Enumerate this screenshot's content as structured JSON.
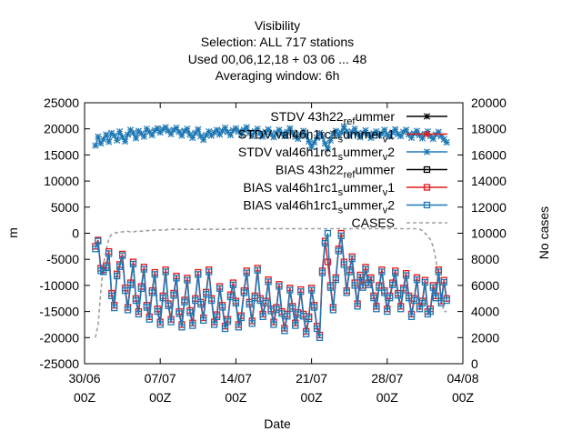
{
  "title_lines": [
    "Visibility",
    "Selection: ALL     717 stations",
    "Used  00,06,12,18  + 03 06 ... 48",
    "Averaging window:  6h"
  ],
  "chart_data": {
    "type": "line",
    "title": "Visibility",
    "xlabel": "Date",
    "ylabel": "m",
    "y2label": "No cases",
    "x_ticks": [
      {
        "x": "30/06 00Z",
        "line1": "30/06",
        "line2": "00Z"
      },
      {
        "x": "07/07 00Z",
        "line1": "07/07",
        "line2": "00Z"
      },
      {
        "x": "14/07 00Z",
        "line1": "14/07",
        "line2": "00Z"
      },
      {
        "x": "21/07 00Z",
        "line1": "21/07",
        "line2": "00Z"
      },
      {
        "x": "28/07 00Z",
        "line1": "28/07",
        "line2": "00Z"
      },
      {
        "x": "04/08 00Z",
        "line1": "04/08",
        "line2": "00Z"
      }
    ],
    "xlim": [
      "30/06 00Z",
      "04/08 00Z"
    ],
    "ylim": [
      -25000,
      25000
    ],
    "y_ticks": [
      -25000,
      -20000,
      -15000,
      -10000,
      -5000,
      0,
      5000,
      10000,
      15000,
      20000,
      25000
    ],
    "y2lim": [
      0,
      20000
    ],
    "y2_ticks": [
      0,
      2000,
      4000,
      6000,
      8000,
      10000,
      12000,
      14000,
      16000,
      18000,
      20000
    ],
    "legend_position": "top-right",
    "legend": [
      {
        "id": "stdv_ref",
        "text": "STDV 43h22",
        "sub": "ref",
        "rest": "ummer",
        "sub2": "",
        "color": "#000000",
        "marker": "star"
      },
      {
        "id": "stdv_v1",
        "text": "STDV val46h1rc1",
        "sub": "s",
        "rest": "ummer",
        "sub2": "v",
        "tail": "1",
        "color": "#e41a1c",
        "marker": "star"
      },
      {
        "id": "stdv_v2",
        "text": "STDV val46h1rc1",
        "sub": "s",
        "rest": "ummer",
        "sub2": "v",
        "tail": "2",
        "color": "#1f78b4",
        "marker": "star"
      },
      {
        "id": "bias_ref",
        "text": "BIAS 43h22",
        "sub": "ref",
        "rest": "ummer",
        "sub2": "",
        "color": "#000000",
        "marker": "square"
      },
      {
        "id": "bias_v1",
        "text": "BIAS val46h1rc1",
        "sub": "s",
        "rest": "ummer",
        "sub2": "v",
        "tail": "1",
        "color": "#e41a1c",
        "marker": "square"
      },
      {
        "id": "bias_v2",
        "text": "BIAS val46h1rc1",
        "sub": "s",
        "rest": "ummer",
        "sub2": "v",
        "tail": "2",
        "color": "#1f78b4",
        "marker": "square"
      },
      {
        "id": "cases",
        "text": "CASES",
        "color": "#a0a0a0",
        "marker": "dash"
      }
    ],
    "x_start": "01/07 00Z",
    "x_step": "6h",
    "series": [
      {
        "name": "STDV val46h1rc1_summer_v2",
        "axis": "y",
        "color": "#1f78b4",
        "marker": "star",
        "values": [
          16800,
          18500,
          17200,
          18000,
          18900,
          17500,
          19200,
          18700,
          17800,
          19500,
          18400,
          17600,
          18900,
          19800,
          19200,
          18200,
          19600,
          19100,
          18500,
          20000,
          19400,
          18800,
          19700,
          20100,
          19300,
          19900,
          20300,
          19600,
          19000,
          19800,
          20200,
          19400,
          18700,
          19600,
          20000,
          18900,
          18300,
          19200,
          19900,
          18600,
          17900,
          18800,
          19500,
          18700,
          19300,
          19800,
          18900,
          19600,
          20200,
          19400,
          18800,
          19700,
          20100,
          19500,
          18900,
          19800,
          20300,
          19200,
          18600,
          19500,
          20000,
          19100,
          18500,
          19400,
          19900,
          19000,
          18400,
          19200,
          19800,
          19100,
          18600,
          19400,
          20100,
          19300,
          18500,
          18100,
          18900,
          19600,
          18700,
          17600,
          16500,
          17400,
          18300,
          19200,
          18500,
          17200,
          16100,
          17800,
          19100,
          19600,
          18700,
          19300,
          20400,
          19500,
          18600,
          19400,
          20000,
          19100,
          18400,
          19200,
          19700,
          18900,
          18300,
          19100,
          19500,
          18700,
          19100,
          19800,
          18900,
          18500,
          19300,
          19900,
          19000,
          18600,
          19400,
          19800,
          18900,
          18300,
          19100,
          19600,
          18800,
          18200,
          19000,
          19500,
          18600,
          18100,
          18900,
          19400,
          18600,
          18000,
          17400
        ]
      },
      {
        "name": "BIAS val46h1rc1_summer_v1",
        "axis": "y",
        "color": "#e41a1c",
        "marker": "square",
        "values": [
          -2500,
          -1300,
          -6700,
          -7000,
          -6200,
          -3500,
          -11500,
          -13800,
          -7800,
          -6000,
          -4000,
          -10500,
          -14200,
          -9500,
          -5500,
          -12500,
          -15000,
          -10200,
          -6500,
          -13800,
          -16000,
          -11000,
          -7500,
          -14500,
          -17000,
          -12000,
          -7000,
          -13500,
          -16500,
          -11500,
          -8200,
          -15000,
          -17500,
          -12800,
          -8600,
          -14800,
          -17200,
          -12500,
          -7500,
          -13200,
          -16200,
          -11300,
          -7000,
          -12500,
          -17000,
          -15600,
          -10200,
          -13800,
          -17800,
          -16500,
          -11800,
          -9500,
          -13000,
          -17500,
          -15800,
          -11000,
          -7200,
          -13200,
          -16800,
          -12000,
          -6700,
          -12500,
          -15500,
          -13000,
          -8900,
          -14500,
          -17000,
          -14200,
          -9800,
          -15000,
          -18200,
          -15500,
          -10500,
          -14000,
          -17200,
          -15200,
          -10800,
          -15500,
          -18800,
          -16000,
          -10500,
          -13800,
          -17800,
          -19500,
          -7200,
          -1500,
          -5500,
          -10000,
          -14200,
          -8500,
          -3000,
          0,
          -5500,
          -11000,
          -7000,
          -4500,
          -9500,
          -13500,
          -8000,
          -10000,
          -6500,
          -9500,
          -8500,
          -12000,
          -14000,
          -10000,
          -7000,
          -11000,
          -14500,
          -12000,
          -9500,
          -7200,
          -11500,
          -14000,
          -10500,
          -7700,
          -12000,
          -15500,
          -12500,
          -8500,
          -14000,
          -13000,
          -9000,
          -15000,
          -14500,
          -10000,
          -12000,
          -7000,
          -13000,
          -9000,
          -12500
        ]
      },
      {
        "name": "BIAS val46h1rc1_summer_v2",
        "axis": "y",
        "color": "#1f78b4",
        "marker": "square",
        "values": [
          -3000,
          -1500,
          -7200,
          -7400,
          -6600,
          -3900,
          -12000,
          -14300,
          -8200,
          -6400,
          -4300,
          -11000,
          -14700,
          -9900,
          -5900,
          -12900,
          -15500,
          -10600,
          -6900,
          -14200,
          -16500,
          -11400,
          -7900,
          -15000,
          -17500,
          -12400,
          -7400,
          -13900,
          -17000,
          -11900,
          -8600,
          -15400,
          -18000,
          -13200,
          -9000,
          -15200,
          -17700,
          -12900,
          -7900,
          -13600,
          -16700,
          -11700,
          -7400,
          -12900,
          -17500,
          -16000,
          -10600,
          -14200,
          -18300,
          -16900,
          -12200,
          -9900,
          -13400,
          -18000,
          -16200,
          -11400,
          -7600,
          -13600,
          -17300,
          -12400,
          -7100,
          -12900,
          -16000,
          -13400,
          -9300,
          -14900,
          -17500,
          -14600,
          -10200,
          -15400,
          -18700,
          -15900,
          -10900,
          -14400,
          -17700,
          -15600,
          -11200,
          -15900,
          -19300,
          -16400,
          -10900,
          -14200,
          -18300,
          -20000,
          -7600,
          -1900,
          0,
          -10400,
          -14700,
          -8900,
          -3400,
          -500,
          -6000,
          -11400,
          -7400,
          -4900,
          -10000,
          -14000,
          -8400,
          -10400,
          -6900,
          -9900,
          -8900,
          -12400,
          -14500,
          -10400,
          -7400,
          -11400,
          -15000,
          -12400,
          -9900,
          -7600,
          -11900,
          -14500,
          -10900,
          -8100,
          -12400,
          -16000,
          -12900,
          -8900,
          -14500,
          -13400,
          -9400,
          -15500,
          -15000,
          -10400,
          -12400,
          -7400,
          -13400,
          -9400,
          -12900
        ]
      },
      {
        "name": "CASES",
        "axis": "y2",
        "color": "#a0a0a0",
        "marker": "dash",
        "values": [
          2000,
          3000,
          5500,
          7600,
          8700,
          9600,
          9900,
          10000,
          10050,
          10100,
          10100,
          10150,
          10150,
          10100,
          10100,
          10150,
          10150,
          10150,
          10200,
          10200,
          10200,
          10200,
          10250,
          10250,
          10250,
          10250,
          10250,
          10300,
          10300,
          10300,
          10300,
          10300,
          10300,
          10300,
          10300,
          10300,
          10300,
          10300,
          10300,
          10300,
          10300,
          10300,
          10300,
          10300,
          10300,
          10300,
          10300,
          10300,
          10300,
          10300,
          10300,
          10350,
          10350,
          10350,
          10350,
          10350,
          10350,
          10350,
          10350,
          10350,
          10350,
          10350,
          10350,
          10350,
          10350,
          10350,
          10350,
          10350,
          10350,
          10350,
          10350,
          10350,
          10350,
          10350,
          10350,
          10350,
          10350,
          10350,
          10350,
          10350,
          10350,
          10350,
          10350,
          10350,
          10350,
          10350,
          10350,
          10350,
          10350,
          10350,
          10350,
          10350,
          10350,
          10350,
          10350,
          10350,
          10350,
          10350,
          10350,
          10350,
          10350,
          10350,
          10350,
          10350,
          10350,
          10350,
          10350,
          10350,
          10350,
          10350,
          10350,
          10350,
          10350,
          10350,
          10350,
          10350,
          10350,
          10350,
          10350,
          10350,
          10300,
          10200,
          10000,
          9800,
          9500,
          9000,
          8000,
          6500,
          5000,
          4000,
          4000
        ]
      }
    ]
  }
}
